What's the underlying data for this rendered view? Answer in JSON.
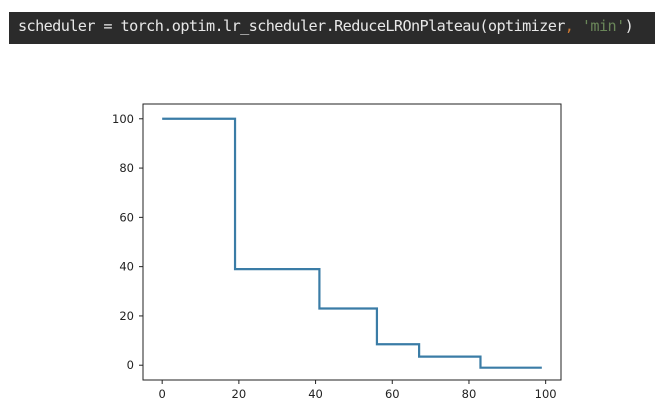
{
  "code": {
    "lhs": "scheduler = torch.optim.lr_scheduler.ReduceLROnPlateau(optimizer",
    "comma": ",",
    "space": " ",
    "string_arg": "'min'",
    "close_paren": ")"
  },
  "chart_data": {
    "type": "line",
    "title": "",
    "xlabel": "",
    "ylabel": "",
    "xlim": [
      -5,
      104
    ],
    "ylim": [
      -6,
      106
    ],
    "x_ticks": [
      0,
      20,
      40,
      60,
      80,
      100
    ],
    "y_ticks": [
      0,
      20,
      40,
      60,
      80,
      100
    ],
    "grid": false,
    "colors": {
      "line": "#3a7ca6",
      "axis": "#222222"
    },
    "series": [
      {
        "step": "post",
        "x": [
          0,
          19,
          41,
          56,
          67,
          83,
          99
        ],
        "y": [
          100,
          39,
          23,
          8.5,
          3.5,
          -1,
          -1
        ]
      }
    ]
  }
}
